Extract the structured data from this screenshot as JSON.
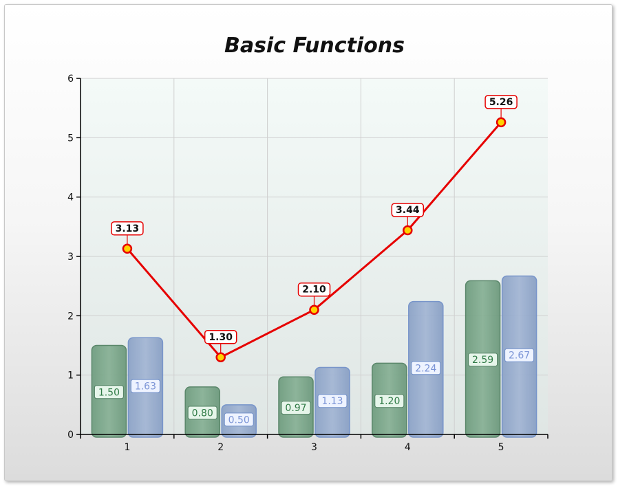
{
  "chart_data": {
    "type": "bar",
    "title": "Basic Functions",
    "xlabel": "",
    "ylabel": "",
    "categories": [
      "1",
      "2",
      "3",
      "4",
      "5"
    ],
    "ylim": [
      0,
      6
    ],
    "yticks": [
      "0",
      "1",
      "2",
      "3",
      "4",
      "5",
      "6"
    ],
    "grid": true,
    "legend": "none",
    "series": [
      {
        "type": "bar",
        "values": [
          1.5,
          0.8,
          0.97,
          1.2,
          2.59
        ],
        "labels": [
          "1.50",
          "0.80",
          "0.97",
          "1.20",
          "2.59"
        ],
        "color": "#6f9d7f"
      },
      {
        "type": "bar",
        "values": [
          1.63,
          0.5,
          1.13,
          2.24,
          2.67
        ],
        "labels": [
          "1.63",
          "0.50",
          "1.13",
          "2.24",
          "2.67"
        ],
        "color": "#8da4c8"
      },
      {
        "type": "line",
        "values": [
          3.13,
          1.3,
          2.1,
          3.44,
          5.26
        ],
        "labels": [
          "3.13",
          "1.30",
          "2.10",
          "3.44",
          "5.26"
        ],
        "color": "#e60000"
      }
    ]
  }
}
